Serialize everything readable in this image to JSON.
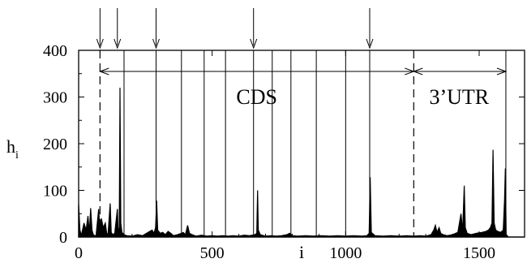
{
  "chart_data": {
    "type": "line",
    "title": "",
    "xlabel": "i",
    "ylabel_main": "h",
    "ylabel_sub": "i",
    "xlim": [
      0,
      1670
    ],
    "ylim": [
      0,
      400
    ],
    "xticks": [
      0,
      500,
      1000,
      1500
    ],
    "yticks": [
      0,
      100,
      200,
      300,
      400
    ],
    "boundaries": {
      "cds_start": 80,
      "cds_end": 1255,
      "utr_end": 1600
    },
    "solid_markers": [
      170,
      290,
      385,
      470,
      550,
      655,
      725,
      795,
      890,
      1000,
      1090
    ],
    "arrows": [
      80,
      145,
      290,
      655,
      1090
    ],
    "regions": [
      {
        "label": "CDS",
        "x": 667
      },
      {
        "label": "3’UTR",
        "x": 1425
      }
    ],
    "series": [
      {
        "values": [
          [
            0,
            70
          ],
          [
            5,
            15
          ],
          [
            10,
            3
          ],
          [
            20,
            30
          ],
          [
            28,
            15
          ],
          [
            35,
            45
          ],
          [
            40,
            10
          ],
          [
            45,
            62
          ],
          [
            50,
            15
          ],
          [
            55,
            5
          ],
          [
            65,
            2
          ],
          [
            75,
            60
          ],
          [
            80,
            10
          ],
          [
            85,
            40
          ],
          [
            92,
            20
          ],
          [
            100,
            30
          ],
          [
            105,
            8
          ],
          [
            110,
            5
          ],
          [
            118,
            72
          ],
          [
            122,
            10
          ],
          [
            128,
            5
          ],
          [
            135,
            8
          ],
          [
            145,
            60
          ],
          [
            148,
            10
          ],
          [
            152,
            20
          ],
          [
            155,
            320
          ],
          [
            158,
            30
          ],
          [
            162,
            10
          ],
          [
            170,
            5
          ],
          [
            180,
            3
          ],
          [
            200,
            2
          ],
          [
            220,
            5
          ],
          [
            240,
            3
          ],
          [
            260,
            10
          ],
          [
            275,
            15
          ],
          [
            282,
            8
          ],
          [
            288,
            20
          ],
          [
            292,
            78
          ],
          [
            296,
            15
          ],
          [
            305,
            8
          ],
          [
            315,
            10
          ],
          [
            325,
            5
          ],
          [
            335,
            12
          ],
          [
            345,
            8
          ],
          [
            355,
            3
          ],
          [
            370,
            5
          ],
          [
            385,
            8
          ],
          [
            392,
            10
          ],
          [
            400,
            5
          ],
          [
            408,
            25
          ],
          [
            415,
            8
          ],
          [
            425,
            5
          ],
          [
            440,
            2
          ],
          [
            460,
            4
          ],
          [
            480,
            2
          ],
          [
            500,
            3
          ],
          [
            520,
            2
          ],
          [
            540,
            3
          ],
          [
            560,
            2
          ],
          [
            580,
            3
          ],
          [
            600,
            2
          ],
          [
            620,
            4
          ],
          [
            640,
            3
          ],
          [
            660,
            5
          ],
          [
            667,
            8
          ],
          [
            670,
            100
          ],
          [
            673,
            15
          ],
          [
            680,
            5
          ],
          [
            700,
            2
          ],
          [
            720,
            3
          ],
          [
            740,
            2
          ],
          [
            760,
            3
          ],
          [
            780,
            5
          ],
          [
            790,
            8
          ],
          [
            800,
            3
          ],
          [
            820,
            2
          ],
          [
            850,
            3
          ],
          [
            880,
            2
          ],
          [
            910,
            3
          ],
          [
            940,
            2
          ],
          [
            970,
            3
          ],
          [
            1000,
            2
          ],
          [
            1030,
            3
          ],
          [
            1060,
            2
          ],
          [
            1080,
            3
          ],
          [
            1088,
            8
          ],
          [
            1092,
            128
          ],
          [
            1096,
            10
          ],
          [
            1110,
            3
          ],
          [
            1140,
            2
          ],
          [
            1170,
            3
          ],
          [
            1200,
            2
          ],
          [
            1230,
            3
          ],
          [
            1255,
            2
          ],
          [
            1280,
            3
          ],
          [
            1300,
            2
          ],
          [
            1320,
            5
          ],
          [
            1330,
            15
          ],
          [
            1336,
            25
          ],
          [
            1342,
            10
          ],
          [
            1350,
            20
          ],
          [
            1356,
            8
          ],
          [
            1365,
            5
          ],
          [
            1380,
            3
          ],
          [
            1400,
            5
          ],
          [
            1420,
            10
          ],
          [
            1432,
            50
          ],
          [
            1438,
            12
          ],
          [
            1444,
            110
          ],
          [
            1448,
            20
          ],
          [
            1455,
            8
          ],
          [
            1470,
            5
          ],
          [
            1490,
            8
          ],
          [
            1510,
            10
          ],
          [
            1525,
            12
          ],
          [
            1535,
            15
          ],
          [
            1542,
            20
          ],
          [
            1548,
            30
          ],
          [
            1552,
            187
          ],
          [
            1556,
            30
          ],
          [
            1562,
            15
          ],
          [
            1570,
            12
          ],
          [
            1580,
            10
          ],
          [
            1590,
            15
          ],
          [
            1595,
            80
          ],
          [
            1598,
            147
          ],
          [
            1601,
            5
          ],
          [
            1610,
            0
          ],
          [
            1670,
            0
          ]
        ]
      }
    ]
  }
}
